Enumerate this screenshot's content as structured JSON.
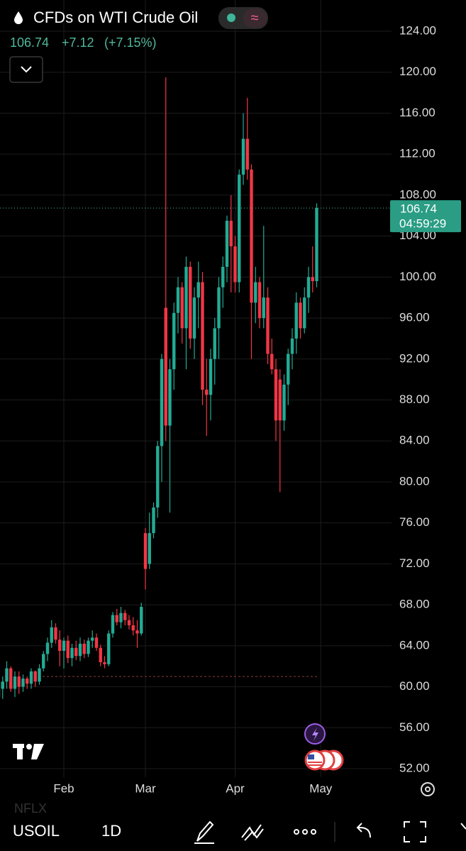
{
  "header": {
    "title": "CFDs on WTI Crude Oil",
    "change": "+7.12",
    "change_pct": "(+7.15%)"
  },
  "toolbar": {
    "symbol": "USOIL",
    "interval": "1D",
    "previous_symbol": "NFLX"
  },
  "chart_data": {
    "type": "candlestick",
    "categories": [
      null,
      null,
      null,
      null,
      null,
      null,
      null,
      null,
      null,
      null,
      null,
      null,
      null,
      null,
      null,
      null,
      "Feb",
      null,
      null,
      null,
      null,
      null,
      null,
      null,
      null,
      null,
      null,
      null,
      null,
      null,
      null,
      null,
      null,
      null,
      null,
      null,
      "Mar",
      null,
      null,
      null,
      null,
      null,
      null,
      null,
      null,
      null,
      null,
      null,
      null,
      null,
      null,
      null,
      null,
      null,
      null,
      null,
      null,
      null,
      "Apr",
      null,
      null,
      null,
      null,
      null,
      null,
      null,
      null,
      null,
      null,
      null,
      null,
      null,
      null,
      null,
      null,
      null,
      null,
      null,
      null,
      "May"
    ],
    "open": [
      59,
      59.8,
      60.5,
      61.8,
      59.8,
      61,
      60,
      60.8,
      60.3,
      61.5,
      60.5,
      61.8,
      63.2,
      64.3,
      65.8,
      64.6,
      63.5,
      64.5,
      62.8,
      63.8,
      63,
      64.2,
      63.2,
      64.5,
      64.8,
      63.8,
      62.4,
      62.2,
      65.2,
      67,
      66.3,
      67.2,
      66.5,
      66,
      65.5,
      65.2,
      75,
      72,
      75,
      77.5,
      83.5,
      97,
      85.5,
      91,
      96.5,
      99,
      95,
      101,
      94,
      98,
      99.5,
      89,
      88.5,
      92,
      95,
      99,
      101,
      105.5,
      103,
      99.5,
      110,
      113.5,
      110.5,
      97.5,
      99.5,
      96,
      98,
      92.5,
      91,
      90,
      86,
      89.5,
      92.5,
      94,
      97.5,
      95,
      98,
      100,
      99.6,
      null
    ],
    "high": [
      60,
      61,
      62.5,
      62,
      61.5,
      61.5,
      61.2,
      61,
      61.8,
      61.6,
      62.2,
      63.5,
      64.8,
      66.5,
      66.2,
      65.5,
      64.8,
      65,
      64.2,
      64.5,
      64.8,
      64.6,
      64.8,
      65.5,
      65.2,
      64.1,
      63,
      65.5,
      67.3,
      67.6,
      67.8,
      67.5,
      67,
      66.8,
      66.5,
      68.2,
      75.5,
      77,
      78,
      84,
      92.5,
      119.5,
      92,
      97.5,
      100,
      99.5,
      102,
      101.5,
      99,
      101.5,
      100.5,
      92,
      93,
      96,
      100,
      102,
      106,
      108,
      104,
      110.5,
      116,
      117.5,
      111,
      101,
      100,
      105,
      99,
      94,
      92,
      91,
      90.5,
      93,
      95,
      98.5,
      98,
      99,
      101,
      103,
      107.2,
      null
    ],
    "low": [
      57.5,
      58.8,
      59.8,
      59.5,
      59,
      59.3,
      59.5,
      59.8,
      59.8,
      60,
      60.2,
      61.5,
      62.5,
      63.8,
      64.2,
      62,
      61.8,
      62.3,
      62,
      62.6,
      62.5,
      62.8,
      62.9,
      63.8,
      63.5,
      62,
      61.8,
      62,
      64.8,
      66,
      65.7,
      66,
      65.6,
      65,
      63.8,
      65,
      69.5,
      71.5,
      74.5,
      76.5,
      80,
      84,
      77,
      89,
      94.5,
      93.5,
      91,
      93,
      92,
      95,
      87.5,
      84.5,
      86,
      89.5,
      92,
      97,
      99.5,
      98.5,
      98.5,
      98.5,
      109,
      109.5,
      92,
      95.5,
      95,
      95,
      91.5,
      90.5,
      84,
      79,
      85,
      87.5,
      91,
      92.5,
      94,
      94.5,
      96.5,
      98.5,
      99,
      null
    ],
    "close": [
      59.8,
      60.5,
      61.8,
      59.8,
      61,
      60,
      60.8,
      60.3,
      61.5,
      60.5,
      61.8,
      63.2,
      64.3,
      65.8,
      64.6,
      63.5,
      64.5,
      62.8,
      63.8,
      63,
      64.2,
      63.2,
      64.5,
      64.8,
      63.8,
      62.4,
      62.2,
      65.2,
      67,
      66.3,
      67.2,
      66.5,
      66,
      65.5,
      65.2,
      67.8,
      71.5,
      75,
      77.5,
      83.5,
      92,
      85.5,
      91,
      96.5,
      99,
      95,
      101,
      94,
      98,
      99.5,
      89,
      88.5,
      92,
      95,
      99,
      101,
      105.5,
      103,
      99.5,
      110,
      113.5,
      110.5,
      97.5,
      99.5,
      96,
      98,
      92.5,
      91,
      86,
      86,
      89.5,
      92.5,
      94,
      97.5,
      95,
      98,
      100,
      99.6,
      106.74,
      null
    ],
    "up_color": "#22ab94",
    "down_color": "#f23645",
    "last_price": 106.74,
    "countdown": "04:59:29",
    "baseline": 61,
    "ylim": [
      51.17,
      127.05
    ],
    "yticks": [
      {
        "value": 52,
        "label": "52.00"
      },
      {
        "value": 56,
        "label": "56.00"
      },
      {
        "value": 60,
        "label": "60.00"
      },
      {
        "value": 64,
        "label": "64.00"
      },
      {
        "value": 68,
        "label": "68.00"
      },
      {
        "value": 72,
        "label": "72.00"
      },
      {
        "value": 76,
        "label": "76.00"
      },
      {
        "value": 80,
        "label": "80.00"
      },
      {
        "value": 84,
        "label": "84.00"
      },
      {
        "value": 88,
        "label": "88.00"
      },
      {
        "value": 92,
        "label": "92.00"
      },
      {
        "value": 96,
        "label": "96.00"
      },
      {
        "value": 100,
        "label": "100.00"
      },
      {
        "value": 104,
        "label": "104.00"
      },
      {
        "value": 108,
        "label": "108.00"
      },
      {
        "value": 112,
        "label": "112.00"
      },
      {
        "value": 116,
        "label": "116.00"
      },
      {
        "value": 120,
        "label": "120.00"
      },
      {
        "value": 124,
        "label": "124.00"
      }
    ],
    "grid": true
  }
}
